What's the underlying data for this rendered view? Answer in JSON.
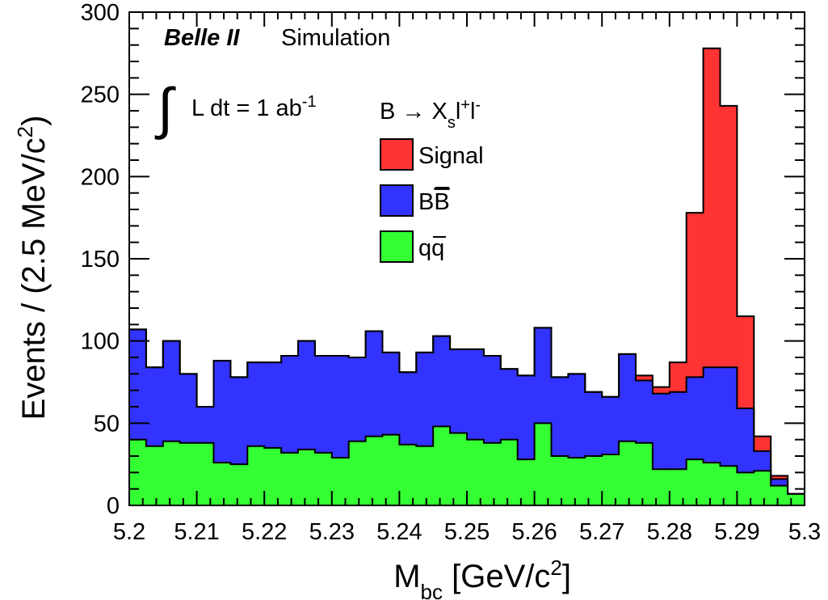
{
  "chart_data": {
    "type": "bar",
    "stacked": true,
    "histogram": true,
    "x_edges_start": 5.2,
    "bin_width": 0.0025,
    "bin_count": 40,
    "xlim": [
      5.2,
      5.3
    ],
    "ylim": [
      0,
      300
    ],
    "grid": false,
    "xlabel": {
      "main": "M",
      "sub": "bc",
      "rest": " [GeV/c",
      "sup": "2",
      "tail": "]"
    },
    "ylabel": {
      "main": "Events / (2.5 MeV/c",
      "sup": "2",
      "tail": ")"
    },
    "x_ticks": [
      "5.2",
      "5.21",
      "5.22",
      "5.23",
      "5.24",
      "5.25",
      "5.26",
      "5.27",
      "5.28",
      "5.29",
      "5.3"
    ],
    "x_tick_values": [
      5.2,
      5.21,
      5.22,
      5.23,
      5.24,
      5.25,
      5.26,
      5.27,
      5.28,
      5.29,
      5.3
    ],
    "y_ticks": [
      "0",
      "50",
      "100",
      "150",
      "200",
      "250",
      "300"
    ],
    "y_tick_values": [
      0,
      50,
      100,
      150,
      200,
      250,
      300
    ],
    "experiment": {
      "name": "Belle II",
      "label": "Simulation"
    },
    "luminosity": {
      "integral": "∫",
      "text": "L dt = 1 ab",
      "sup": "-1"
    },
    "process": {
      "lead": "B → X",
      "sub": "s",
      "l1": "l",
      "sup1": "+",
      "l2": "l",
      "sup2": "-"
    },
    "series": [
      {
        "name": "qq̄",
        "label_main": "q",
        "label_bar": "q",
        "color": "#33ff33",
        "values": [
          40,
          36,
          39,
          38,
          38,
          26,
          25,
          36,
          35,
          32,
          34,
          32,
          29,
          39,
          42,
          43,
          37,
          36,
          48,
          44,
          40,
          38,
          40,
          28,
          50,
          30,
          29,
          30,
          31,
          39,
          38,
          22,
          22,
          28,
          26,
          24,
          20,
          21,
          12,
          7
        ]
      },
      {
        "name": "BB̄",
        "label_main": "B",
        "label_bar": "B",
        "color": "#3333ff",
        "values": [
          67,
          48,
          61,
          42,
          22,
          62,
          53,
          51,
          52,
          59,
          66,
          59,
          62,
          51,
          64,
          50,
          44,
          57,
          55,
          51,
          55,
          53,
          43,
          51,
          58,
          48,
          51,
          39,
          35,
          53,
          38,
          46,
          47,
          50,
          58,
          60,
          39,
          12,
          4,
          0
        ]
      },
      {
        "name": "Signal",
        "label_main": "Signal",
        "color": "#ff3333",
        "values": [
          0,
          0,
          0,
          0,
          0,
          0,
          0,
          0,
          0,
          0,
          0,
          0,
          0,
          0,
          0,
          0,
          0,
          0,
          0,
          0,
          0,
          0,
          0,
          0,
          0,
          0,
          0,
          0,
          0,
          0,
          3,
          4,
          18,
          100,
          194,
          159,
          56,
          9,
          2,
          0
        ]
      }
    ],
    "legend_position": "top-center"
  }
}
